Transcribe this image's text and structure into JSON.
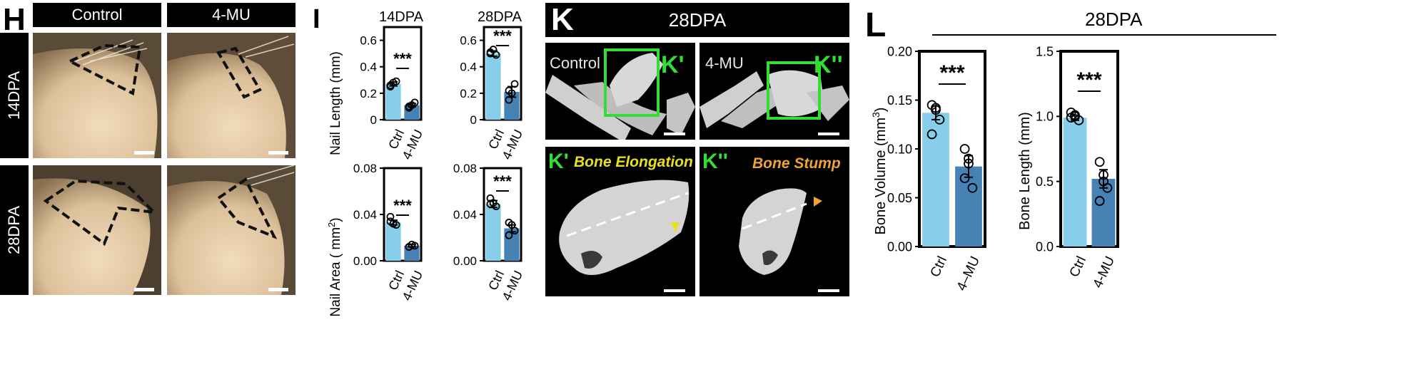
{
  "panels": {
    "H": {
      "letter": "H",
      "columns": [
        "Control",
        "4-MU"
      ],
      "rows": [
        "14DPA",
        "28DPA"
      ]
    },
    "I": {
      "letter": "I",
      "top_titles": [
        "14DPA",
        "28DPA"
      ],
      "ylabel_top": "Nail Length (mm)",
      "ylabel_bottom": "Nail Area ( mm",
      "ylabel_bottom_sup": "2",
      "ylabel_bottom_end": ")",
      "categories": [
        "Ctrl",
        "4-MU"
      ],
      "sig": "***"
    },
    "K": {
      "letter": "K",
      "title": "28DPA",
      "top_labels": [
        "Control",
        "4-MU"
      ],
      "tags": [
        "K'",
        "K''"
      ],
      "notes": [
        "Bone Elongation",
        "Bone Stump"
      ]
    },
    "L": {
      "letter": "L",
      "title": "28DPA",
      "ylabel_left": "Bone Volume (mm",
      "ylabel_left_sup": "3",
      "ylabel_left_end": ")",
      "ylabel_right": "Bone Length (mm)",
      "categories": [
        "Ctrl",
        "4–MU"
      ],
      "categories_right": [
        "Ctrl",
        "4-MU"
      ],
      "sig": "***"
    }
  },
  "colors": {
    "control_bar": "#87ceeb",
    "treatment_bar": "#4682b4",
    "ct_green": "#33dd33",
    "note_yellow": "#e8e01c",
    "note_orange": "#f0a23a"
  },
  "chart_data": [
    {
      "type": "bar",
      "title": "14DPA",
      "ylabel": "Nail Length (mm)",
      "categories": [
        "Ctrl",
        "4-MU"
      ],
      "values": [
        0.27,
        0.11
      ],
      "errors": [
        0.015,
        0.012
      ],
      "points": [
        [
          0.26,
          0.28,
          0.29,
          0.25
        ],
        [
          0.09,
          0.11,
          0.13,
          0.1
        ]
      ],
      "ylim": [
        0,
        0.7
      ],
      "yticks": [
        "0",
        "0.2",
        "0.4",
        "0.6"
      ],
      "significance": "***"
    },
    {
      "type": "bar",
      "title": "28DPA",
      "ylabel": "Nail Length (mm)",
      "categories": [
        "Ctrl",
        "4-MU"
      ],
      "values": [
        0.5,
        0.21
      ],
      "errors": [
        0.02,
        0.04
      ],
      "points": [
        [
          0.51,
          0.53,
          0.49,
          0.5
        ],
        [
          0.15,
          0.2,
          0.27,
          0.22
        ]
      ],
      "ylim": [
        0,
        0.7
      ],
      "yticks": [
        "0",
        "0.2",
        "0.4",
        "0.6"
      ],
      "significance": "***"
    },
    {
      "type": "bar",
      "title": "",
      "ylabel": "Nail Area (mm2)",
      "categories": [
        "Ctrl",
        "4-MU"
      ],
      "values": [
        0.033,
        0.013
      ],
      "errors": [
        0.002,
        0.001
      ],
      "points": [
        [
          0.038,
          0.032,
          0.031,
          0.034
        ],
        [
          0.012,
          0.014,
          0.013,
          0.012
        ]
      ],
      "ylim": [
        0,
        0.08
      ],
      "yticks": [
        "0.00",
        "0.04",
        "0.08"
      ],
      "significance": "***"
    },
    {
      "type": "bar",
      "title": "",
      "ylabel": "Nail Area (mm2)",
      "categories": [
        "Ctrl",
        "4-MU"
      ],
      "values": [
        0.049,
        0.028
      ],
      "errors": [
        0.003,
        0.003
      ],
      "points": [
        [
          0.054,
          0.05,
          0.047,
          0.049
        ],
        [
          0.022,
          0.031,
          0.026,
          0.033
        ]
      ],
      "ylim": [
        0,
        0.08
      ],
      "yticks": [
        "0.00",
        "0.04",
        "0.08"
      ],
      "significance": "***"
    },
    {
      "type": "bar",
      "title": "28DPA",
      "ylabel": "Bone Volume (mm3)",
      "categories": [
        "Ctrl",
        "4–MU"
      ],
      "values": [
        0.137,
        0.082
      ],
      "errors": [
        0.007,
        0.011
      ],
      "points": [
        [
          0.145,
          0.14,
          0.13,
          0.115,
          0.142
        ],
        [
          0.1,
          0.085,
          0.06,
          0.07,
          0.09
        ]
      ],
      "ylim": [
        0,
        0.2
      ],
      "yticks": [
        "0.00",
        "0.05",
        "0.10",
        "0.15",
        "0.20"
      ],
      "significance": "***"
    },
    {
      "type": "bar",
      "title": "28DPA",
      "ylabel": "Bone Length (mm)",
      "categories": [
        "Ctrl",
        "4-MU"
      ],
      "values": [
        0.99,
        0.52
      ],
      "errors": [
        0.02,
        0.07
      ],
      "points": [
        [
          1.03,
          1.0,
          0.97,
          0.99,
          1.01
        ],
        [
          0.65,
          0.55,
          0.45,
          0.35,
          0.5
        ]
      ],
      "ylim": [
        0,
        1.5
      ],
      "yticks": [
        "0.0",
        "0.5",
        "1.0",
        "1.5"
      ],
      "significance": "***"
    }
  ]
}
